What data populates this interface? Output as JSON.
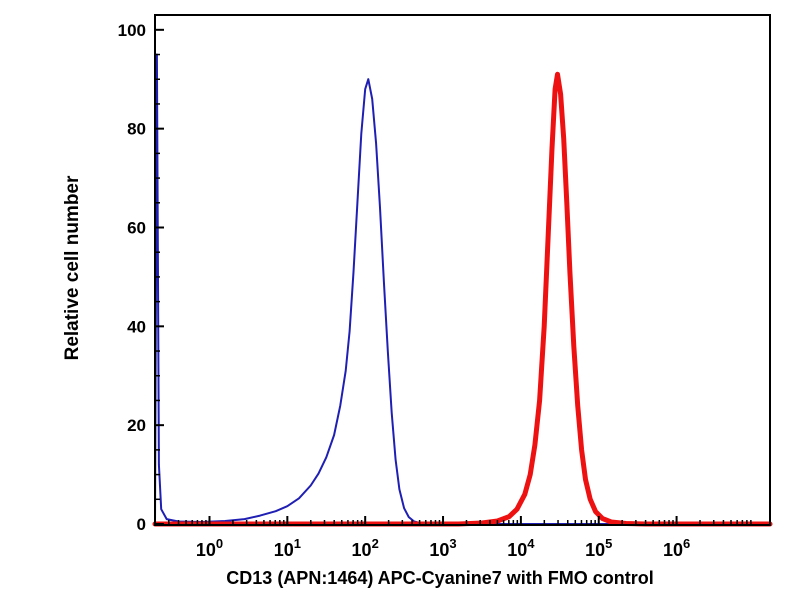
{
  "figure": {
    "background": "#ffffff",
    "axis_color": "#000000"
  },
  "chart_data": {
    "type": "line",
    "subtype": "flow-cytometry-histogram",
    "title": "",
    "xlabel": "CD13 (APN:1464) APC-Cyanine7 with FMO control",
    "ylabel": "Relative cell number",
    "x_scale": "log10",
    "x_tick_mantissa": "10",
    "x_major_ticks_exponents": [
      0,
      1,
      2,
      3,
      4,
      5,
      6
    ],
    "xlim_log10": [
      -0.7,
      7.2
    ],
    "ylim": [
      0,
      103
    ],
    "y_ticks": [
      0,
      20,
      40,
      60,
      80,
      100
    ],
    "y_minor_step": 5,
    "grid": false,
    "frame": true,
    "legend": "none",
    "series": [
      {
        "id": "fmo-control",
        "name": "FMO control (blue)",
        "color": "#1f1fb4",
        "linewidth": 2,
        "peak_x": 100,
        "peak_y": 90,
        "points": [
          [
            -0.7,
            0
          ],
          [
            -0.675,
            95
          ],
          [
            -0.65,
            12
          ],
          [
            -0.62,
            3
          ],
          [
            -0.55,
            1
          ],
          [
            -0.4,
            0.5
          ],
          [
            -0.1,
            0.4
          ],
          [
            0.2,
            0.6
          ],
          [
            0.45,
            1.0
          ],
          [
            0.65,
            1.7
          ],
          [
            0.85,
            2.6
          ],
          [
            1.0,
            3.6
          ],
          [
            1.15,
            5.2
          ],
          [
            1.3,
            7.8
          ],
          [
            1.4,
            10.2
          ],
          [
            1.5,
            13.5
          ],
          [
            1.6,
            18
          ],
          [
            1.68,
            24
          ],
          [
            1.75,
            31
          ],
          [
            1.8,
            39
          ],
          [
            1.85,
            51
          ],
          [
            1.9,
            65
          ],
          [
            1.95,
            79
          ],
          [
            2.0,
            88
          ],
          [
            2.04,
            90
          ],
          [
            2.09,
            86
          ],
          [
            2.14,
            77
          ],
          [
            2.19,
            64
          ],
          [
            2.24,
            49
          ],
          [
            2.29,
            35
          ],
          [
            2.34,
            22.5
          ],
          [
            2.39,
            13
          ],
          [
            2.44,
            7
          ],
          [
            2.5,
            3.2
          ],
          [
            2.56,
            1.4
          ],
          [
            2.63,
            0.5
          ],
          [
            2.72,
            0.15
          ],
          [
            2.9,
            0
          ],
          [
            7.2,
            0
          ]
        ]
      },
      {
        "id": "cd13-apc-cyanine7",
        "name": "CD13 (APN:1464) APC-Cyanine7 (red)",
        "color": "#ee1111",
        "linewidth": 5,
        "peak_x": 28000,
        "peak_y": 91,
        "points": [
          [
            -0.7,
            0
          ],
          [
            3.2,
            0
          ],
          [
            3.5,
            0.2
          ],
          [
            3.7,
            0.6
          ],
          [
            3.85,
            1.5
          ],
          [
            3.95,
            3
          ],
          [
            4.05,
            6
          ],
          [
            4.12,
            10
          ],
          [
            4.18,
            16
          ],
          [
            4.24,
            25
          ],
          [
            4.3,
            40
          ],
          [
            4.35,
            58
          ],
          [
            4.4,
            76
          ],
          [
            4.44,
            88
          ],
          [
            4.47,
            91
          ],
          [
            4.51,
            87
          ],
          [
            4.55,
            78
          ],
          [
            4.59,
            65
          ],
          [
            4.63,
            51
          ],
          [
            4.68,
            36
          ],
          [
            4.73,
            24
          ],
          [
            4.78,
            15
          ],
          [
            4.83,
            9
          ],
          [
            4.89,
            5
          ],
          [
            4.96,
            2.5
          ],
          [
            5.05,
            1.1
          ],
          [
            5.16,
            0.4
          ],
          [
            5.35,
            0.1
          ],
          [
            5.6,
            0
          ],
          [
            7.2,
            0
          ]
        ]
      }
    ]
  }
}
